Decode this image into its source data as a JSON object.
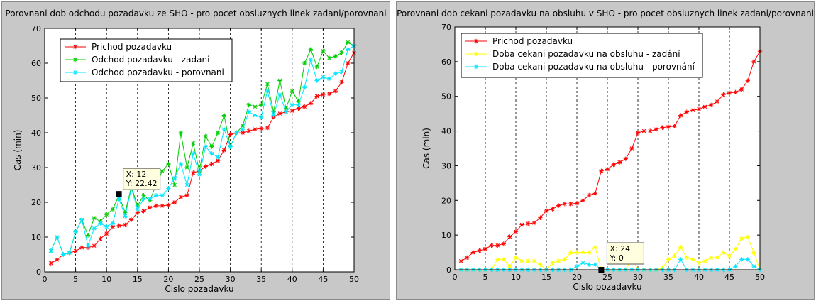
{
  "chart_data": [
    {
      "type": "line",
      "title": "Porovnani dob odchodu pozadavku ze SHO - pro pocet obsluznych linek zadani/porovnani",
      "xlabel": "Cislo pozadavku",
      "ylabel": "Cas (min)",
      "xlim": [
        0,
        50
      ],
      "ylim": [
        0,
        70
      ],
      "xticks": [
        0,
        5,
        10,
        15,
        20,
        25,
        30,
        35,
        40,
        45,
        50
      ],
      "yticks": [
        0,
        10,
        20,
        30,
        40,
        50,
        60,
        70
      ],
      "grid": "vertical dashed",
      "legend_position": "top-left",
      "x": [
        1,
        2,
        3,
        4,
        5,
        6,
        7,
        8,
        9,
        10,
        11,
        12,
        13,
        14,
        15,
        16,
        17,
        18,
        19,
        20,
        21,
        22,
        23,
        24,
        25,
        26,
        27,
        28,
        29,
        30,
        31,
        32,
        33,
        34,
        35,
        36,
        37,
        38,
        39,
        40,
        41,
        42,
        43,
        44,
        45,
        46,
        47,
        48,
        49,
        50
      ],
      "series": [
        {
          "name": "Prichod pozadavku",
          "color": "#ff0000",
          "values": [
            2.5,
            3.5,
            5,
            5.5,
            6,
            7,
            7,
            7.5,
            9.5,
            11,
            13,
            13.3,
            13.5,
            15,
            17,
            17.5,
            18.5,
            19,
            19,
            19.2,
            20,
            21.5,
            22,
            28.5,
            29,
            30.3,
            31,
            32,
            35,
            39.5,
            40,
            40,
            40.5,
            41,
            41.2,
            41.4,
            44.5,
            45.5,
            46,
            46.3,
            47,
            47.5,
            48.5,
            50.5,
            51,
            51.2,
            52,
            54.5,
            60,
            63
          ]
        },
        {
          "name": "Odchod pozadavku - zadani",
          "color": "#00cc00",
          "values": [
            6,
            10,
            5,
            5.5,
            11.5,
            15,
            10.5,
            15.5,
            14.5,
            16.5,
            18,
            22,
            17,
            24.5,
            19,
            22,
            20.5,
            25,
            29,
            31,
            25,
            40,
            30,
            37,
            29,
            39,
            36,
            40,
            45,
            36,
            40,
            42,
            48,
            47.5,
            48,
            54,
            46,
            55,
            47,
            52,
            49,
            60,
            64,
            59,
            63.5,
            61.5,
            62,
            63,
            66,
            65
          ]
        },
        {
          "name": "Odchod pozadavku - porovnani",
          "color": "#00e6ff",
          "values": [
            6,
            10,
            5,
            5.5,
            11.5,
            15,
            7.5,
            12.5,
            14,
            13,
            14,
            21,
            16,
            24,
            18,
            21,
            21,
            22,
            22,
            24,
            27,
            31,
            25,
            34,
            28,
            36,
            34,
            33,
            41,
            36,
            40,
            41,
            46,
            45,
            44.5,
            52,
            45,
            51,
            46,
            48,
            48,
            53,
            61,
            55,
            56,
            55.5,
            57,
            57.5,
            64,
            65
          ]
        }
      ],
      "datatip": {
        "lines": [
          "X: 12",
          "Y: 22.42"
        ],
        "x": 12,
        "y": 22.42
      }
    },
    {
      "type": "line",
      "title": "Porovnani dob cekani pozadavku na obsluhu v SHO - pro pocet obsluznych linek zadani/porovnani",
      "xlabel": "Cislo pozadavku",
      "ylabel": "Cas (min)",
      "xlim": [
        0,
        50
      ],
      "ylim": [
        0,
        70
      ],
      "xticks": [
        0,
        5,
        10,
        15,
        20,
        25,
        30,
        35,
        40,
        45,
        50
      ],
      "yticks": [
        0,
        10,
        20,
        30,
        40,
        50,
        60,
        70
      ],
      "grid": "vertical dashed",
      "legend_position": "top-left",
      "x": [
        1,
        2,
        3,
        4,
        5,
        6,
        7,
        8,
        9,
        10,
        11,
        12,
        13,
        14,
        15,
        16,
        17,
        18,
        19,
        20,
        21,
        22,
        23,
        24,
        25,
        26,
        27,
        28,
        29,
        30,
        31,
        32,
        33,
        34,
        35,
        36,
        37,
        38,
        39,
        40,
        41,
        42,
        43,
        44,
        45,
        46,
        47,
        48,
        49,
        50
      ],
      "series": [
        {
          "name": "Prichod pozadavku",
          "color": "#ff0000",
          "values": [
            2.5,
            3.5,
            5,
            5.5,
            6,
            7,
            7,
            7.5,
            9.5,
            11,
            13,
            13.3,
            13.5,
            15,
            17,
            17.5,
            18.5,
            19,
            19,
            19.2,
            20,
            21.5,
            22,
            28.5,
            29,
            30.3,
            31,
            32,
            35,
            39.5,
            40,
            40,
            40.5,
            41,
            41.2,
            41.4,
            44.5,
            45.5,
            46,
            46.3,
            47,
            47.5,
            48.5,
            50.5,
            51,
            51.2,
            52,
            54.5,
            60,
            63
          ]
        },
        {
          "name": "Doba cekani pozadavku na obsluhu - zadání",
          "color": "#ffff00",
          "values": [
            0,
            0,
            0,
            0,
            0,
            0,
            3,
            3,
            1,
            3.5,
            2.5,
            2.5,
            2.5,
            1.5,
            0,
            2,
            2.5,
            3,
            5,
            5,
            5,
            5,
            6.5,
            0,
            0,
            0,
            0,
            0,
            3.5,
            0,
            0,
            0,
            0,
            0.5,
            3,
            4,
            6.5,
            3.5,
            3,
            2,
            2.5,
            3.5,
            3.5,
            5,
            4,
            6,
            9,
            9.5,
            5,
            0
          ]
        },
        {
          "name": "Doba cekani pozadavku na obsluhu - porovnání",
          "color": "#00e6ff",
          "values": [
            0,
            0,
            0,
            0,
            0,
            0,
            0,
            0,
            0,
            0,
            0,
            0,
            0,
            0,
            0,
            0,
            0,
            0,
            0,
            1,
            2,
            1.5,
            1.5,
            0,
            0,
            0,
            0,
            0,
            0,
            0,
            0,
            0,
            0,
            0,
            0,
            0,
            3,
            0,
            0,
            0,
            0,
            0,
            0,
            0,
            0,
            1,
            3,
            3,
            1,
            0
          ]
        }
      ],
      "datatip": {
        "lines": [
          "X: 24",
          "Y: 0"
        ],
        "x": 24,
        "y": 0
      }
    }
  ]
}
